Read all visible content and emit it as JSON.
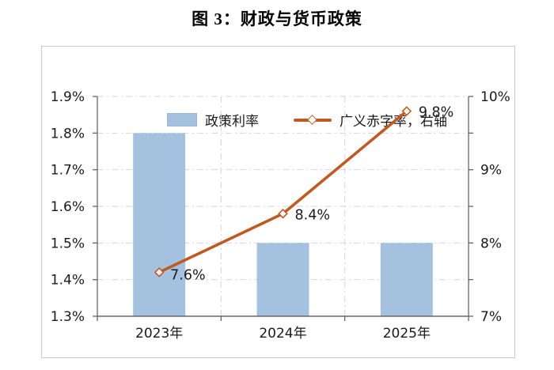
{
  "figure": {
    "title": "图 3：财政与货币政策"
  },
  "legend": [
    {
      "type": "bar-swatch",
      "label": "政策利率"
    },
    {
      "type": "line-marker",
      "label": "广义赤字率，右轴"
    }
  ],
  "colors": {
    "bar_fill": "#a4c2e0",
    "line_stroke": "#c05a24",
    "marker_fill": "#ffffff",
    "text": "#1a1a1a",
    "grid": "#d6d6d6",
    "axis": "#666666",
    "frame_border": "#c9c9c9"
  },
  "chart_data": {
    "type": "bar",
    "subtype": "bar-and-line-combo",
    "categories": [
      "2023年",
      "2024年",
      "2025年"
    ],
    "series": [
      {
        "name": "政策利率",
        "type": "bar",
        "axis": "left",
        "values": [
          1.8,
          1.5,
          1.5
        ],
        "unit": "%"
      },
      {
        "name": "广义赤字率，右轴",
        "type": "line",
        "axis": "right",
        "values": [
          7.6,
          8.4,
          9.8
        ],
        "unit": "%",
        "data_labels": [
          "7.6%",
          "8.4%",
          "9.8%"
        ]
      }
    ],
    "left_axis": {
      "min": 1.3,
      "max": 1.9,
      "step": 0.1,
      "tick_labels": [
        "1.3%",
        "1.4%",
        "1.5%",
        "1.6%",
        "1.7%",
        "1.8%",
        "1.9%"
      ]
    },
    "right_axis": {
      "min": 7,
      "max": 10,
      "label_step": 1,
      "minor_tick_step": 0.5,
      "tick_labels": [
        "7%",
        "8%",
        "9%",
        "10%"
      ]
    },
    "grid": true,
    "gridline_style": "dash-dot",
    "legend_position": "top"
  }
}
